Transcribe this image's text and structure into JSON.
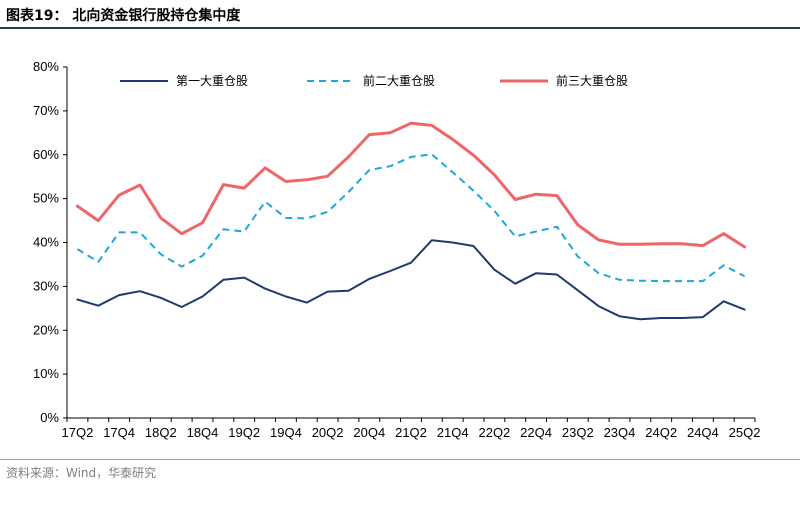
{
  "header": {
    "title": "图表19：  北向资金银行股持仓集中度"
  },
  "footer": {
    "source": "资料来源：Wind，华泰研究"
  },
  "colors": {
    "title_rule": "#1f3a5f",
    "axis": "#000000"
  },
  "chart_data": {
    "type": "line",
    "title": "",
    "xlabel": "",
    "ylabel": "",
    "ylim": [
      0,
      80
    ],
    "y_ticks": [
      "0%",
      "10%",
      "20%",
      "30%",
      "40%",
      "50%",
      "60%",
      "70%",
      "80%"
    ],
    "y_tick_values": [
      0,
      10,
      20,
      30,
      40,
      50,
      60,
      70,
      80
    ],
    "grid": false,
    "legend_position": "top",
    "x": [
      "17Q2",
      "17Q3",
      "17Q4",
      "18Q1",
      "18Q2",
      "18Q3",
      "18Q4",
      "19Q1",
      "19Q2",
      "19Q3",
      "19Q4",
      "20Q1",
      "20Q2",
      "20Q3",
      "20Q4",
      "21Q1",
      "21Q2",
      "21Q3",
      "21Q4",
      "22Q1",
      "22Q2",
      "22Q3",
      "22Q4",
      "23Q1",
      "23Q2",
      "23Q3",
      "23Q4",
      "24Q1",
      "24Q2",
      "24Q3",
      "24Q4",
      "25Q1",
      "25Q2"
    ],
    "x_tick_labels": [
      "17Q2",
      "17Q4",
      "18Q2",
      "18Q4",
      "19Q2",
      "19Q4",
      "20Q2",
      "20Q4",
      "21Q2",
      "21Q4",
      "22Q2",
      "22Q4",
      "23Q2",
      "23Q4",
      "24Q2",
      "24Q4",
      "25Q2"
    ],
    "series": [
      {
        "name": "第一大重仓股",
        "color": "#1f3a6e",
        "style": "solid",
        "values": [
          27.0,
          25.6,
          28.0,
          28.9,
          27.4,
          25.3,
          27.7,
          31.5,
          32.0,
          29.5,
          27.7,
          26.3,
          28.8,
          29.0,
          31.7,
          33.5,
          35.4,
          40.5,
          40.0,
          39.2,
          33.8,
          30.6,
          33.0,
          32.7,
          29.1,
          25.5,
          23.2,
          22.5,
          22.8,
          22.8,
          23.0,
          26.6,
          24.7
        ]
      },
      {
        "name": "前二大重仓股",
        "color": "#1ea7d8",
        "style": "dashed",
        "values": [
          38.5,
          35.6,
          42.3,
          42.3,
          37.3,
          34.5,
          37.0,
          43.0,
          42.5,
          49.3,
          45.6,
          45.5,
          47.0,
          51.5,
          56.5,
          57.4,
          59.5,
          60.1,
          56.0,
          51.8,
          47.2,
          41.4,
          42.5,
          43.6,
          36.8,
          33.0,
          31.5,
          31.3,
          31.2,
          31.2,
          31.2,
          34.8,
          32.3
        ]
      },
      {
        "name": "前三大重仓股",
        "color": "#f06565",
        "style": "solid",
        "values": [
          48.3,
          45.0,
          50.8,
          53.1,
          45.6,
          42.0,
          44.5,
          53.2,
          52.4,
          57.0,
          53.9,
          54.3,
          55.1,
          59.5,
          64.6,
          65.0,
          67.2,
          66.7,
          63.5,
          59.9,
          55.4,
          49.8,
          51.0,
          50.7,
          44.0,
          40.6,
          39.6,
          39.6,
          39.7,
          39.7,
          39.3,
          42.0,
          39.0
        ]
      }
    ]
  }
}
